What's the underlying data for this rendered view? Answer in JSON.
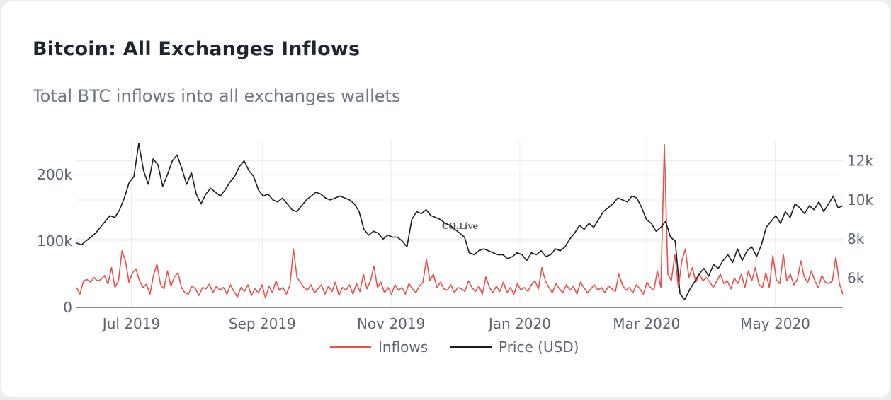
{
  "title": "Bitcoin: All Exchanges Inflows",
  "subtitle": "Total BTC inflows into all exchanges wallets",
  "watermark": "CQ.Live",
  "colors": {
    "inflows": "#e8504a",
    "price": "#1b1d22",
    "grid": "#ececec",
    "axis": "#5c6370"
  },
  "chart_data": {
    "type": "line",
    "x_ticks": [
      "Jul 2019",
      "Sep 2019",
      "Nov 2019",
      "Jan 2020",
      "Mar 2020",
      "May 2020"
    ],
    "y_left_ticks": [
      "0",
      "100k",
      "200k"
    ],
    "y_right_ticks": [
      "6k",
      "8k",
      "10k",
      "12k"
    ],
    "ylim_left": [
      0,
      250000
    ],
    "ylim_right": [
      4500,
      13000
    ],
    "xlim": [
      "2019-06-05",
      "2020-06-02"
    ],
    "grid": true,
    "legend_position": "bottom-center",
    "series": [
      {
        "name": "Inflows",
        "axis": "left",
        "values": [
          30000,
          20000,
          40000,
          42000,
          38000,
          45000,
          40000,
          42000,
          48000,
          35000,
          60000,
          30000,
          40000,
          85000,
          70000,
          38000,
          52000,
          58000,
          40000,
          30000,
          35000,
          20000,
          48000,
          65000,
          35000,
          28000,
          55000,
          32000,
          46000,
          52000,
          30000,
          22000,
          20000,
          32000,
          28000,
          18000,
          30000,
          28000,
          35000,
          22000,
          32000,
          26000,
          30000,
          20000,
          34000,
          24000,
          16000,
          30000,
          24000,
          34000,
          18000,
          28000,
          22000,
          34000,
          14000,
          32000,
          22000,
          40000,
          26000,
          30000,
          20000,
          34000,
          88000,
          45000,
          38000,
          30000,
          26000,
          34000,
          22000,
          28000,
          34000,
          20000,
          32000,
          24000,
          38000,
          18000,
          30000,
          26000,
          34000,
          20000,
          36000,
          24000,
          50000,
          28000,
          40000,
          62000,
          30000,
          38000,
          22000,
          30000,
          20000,
          34000,
          26000,
          30000,
          20000,
          36000,
          28000,
          22000,
          32000,
          38000,
          72000,
          40000,
          50000,
          30000,
          38000,
          28000,
          26000,
          34000,
          22000,
          30000,
          28000,
          24000,
          40000,
          30000,
          24000,
          32000,
          20000,
          46000,
          30000,
          22000,
          32000,
          24000,
          38000,
          22000,
          30000,
          20000,
          36000,
          26000,
          30000,
          24000,
          34000,
          40000,
          28000,
          60000,
          40000,
          30000,
          22000,
          36000,
          28000,
          22000,
          34000,
          26000,
          32000,
          20000,
          38000,
          30000,
          22000,
          28000,
          34000,
          26000,
          30000,
          22000,
          32000,
          28000,
          24000,
          50000,
          34000,
          26000,
          30000,
          22000,
          34000,
          28000,
          20000,
          38000,
          30000,
          26000,
          55000,
          30000,
          245000,
          50000,
          40000,
          80000,
          30000,
          70000,
          88000,
          45000,
          60000,
          38000,
          50000,
          40000,
          45000,
          38000,
          30000,
          40000,
          50000,
          36000,
          40000,
          28000,
          44000,
          36000,
          50000,
          30000,
          55000,
          40000,
          60000,
          35000,
          30000,
          52000,
          30000,
          78000,
          42000,
          36000,
          80000,
          40000,
          50000,
          34000,
          42000,
          70000,
          45000,
          38000,
          55000,
          40000,
          30000,
          48000,
          38000,
          36000,
          40000,
          76000,
          36000,
          20000
        ]
      },
      {
        "name": "Price (USD)",
        "axis": "right",
        "values": [
          7800,
          7700,
          7900,
          8100,
          8300,
          8600,
          8900,
          9200,
          9100,
          9500,
          10100,
          10900,
          11200,
          12900,
          11500,
          10800,
          12100,
          11800,
          10700,
          11300,
          12000,
          12300,
          11600,
          10800,
          11400,
          10300,
          9800,
          10300,
          10600,
          10400,
          10200,
          10500,
          10900,
          11200,
          11700,
          12000,
          11500,
          11200,
          10500,
          10200,
          10300,
          10000,
          9900,
          10100,
          9800,
          9500,
          9400,
          9700,
          10000,
          10200,
          10400,
          10300,
          10100,
          10000,
          10100,
          10200,
          10100,
          10000,
          9800,
          9400,
          8500,
          8200,
          8400,
          8300,
          8000,
          8200,
          8100,
          8100,
          7900,
          7600,
          9000,
          9400,
          9300,
          9500,
          9200,
          9100,
          9000,
          8800,
          8700,
          8500,
          8300,
          8100,
          7300,
          7200,
          7400,
          7500,
          7400,
          7300,
          7200,
          7200,
          7000,
          7100,
          7300,
          7200,
          6900,
          7300,
          7200,
          7400,
          7100,
          7200,
          7500,
          7400,
          7600,
          8000,
          8300,
          8700,
          8500,
          8800,
          8600,
          9000,
          9400,
          9600,
          9800,
          10100,
          10000,
          9900,
          10200,
          10100,
          9600,
          9000,
          8800,
          8400,
          8600,
          8900,
          8100,
          7900,
          5200,
          4900,
          5400,
          5800,
          6200,
          6500,
          6100,
          6700,
          6500,
          6900,
          7200,
          6800,
          7500,
          6900,
          7400,
          7600,
          7100,
          7700,
          8600,
          8900,
          9200,
          8800,
          9400,
          9100,
          9800,
          9600,
          9300,
          9700,
          9500,
          9900,
          9400,
          9800,
          10200,
          9600,
          9700
        ]
      }
    ]
  },
  "legend": {
    "inflows_label": "Inflows",
    "price_label": "Price (USD)"
  }
}
